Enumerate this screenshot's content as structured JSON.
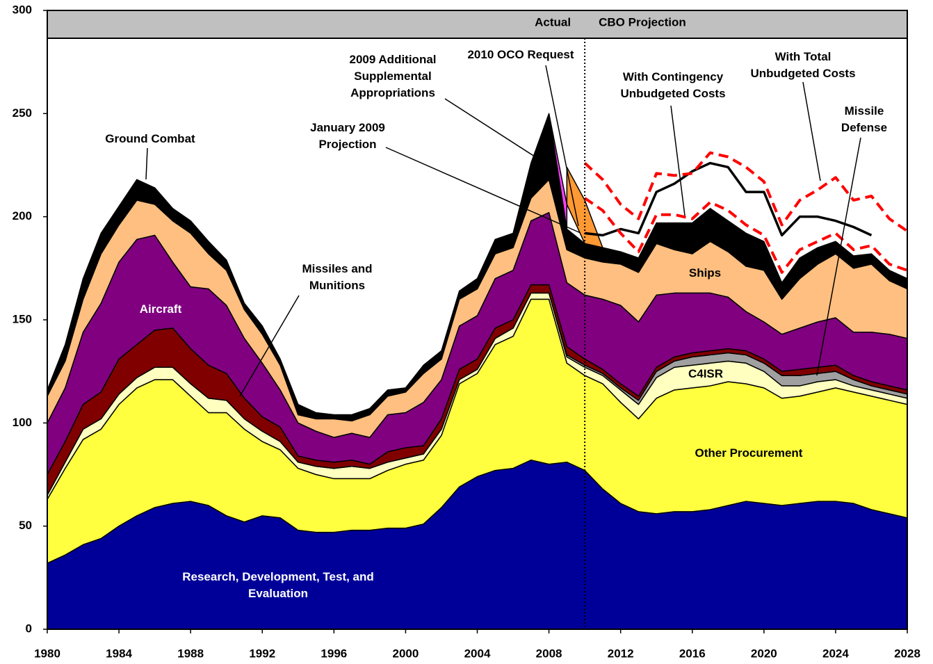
{
  "chart_data": {
    "type": "stacked_area",
    "actual_label": "Actual",
    "projection_label": "CBO Projection",
    "projection_start": 2010,
    "xlim": [
      1980,
      2028
    ],
    "xticks": [
      1980,
      1984,
      1988,
      1992,
      1996,
      2000,
      2004,
      2008,
      2012,
      2016,
      2020,
      2024,
      2028
    ],
    "ylim": [
      0,
      300
    ],
    "yticks": [
      0,
      50,
      100,
      150,
      200,
      250,
      300
    ],
    "grid": false,
    "x": [
      1980,
      1981,
      1982,
      1983,
      1984,
      1985,
      1986,
      1987,
      1988,
      1989,
      1990,
      1991,
      1992,
      1993,
      1994,
      1995,
      1996,
      1997,
      1998,
      1999,
      2000,
      2001,
      2002,
      2003,
      2004,
      2005,
      2006,
      2007,
      2008,
      2009,
      2010,
      2011,
      2012,
      2013,
      2014,
      2015,
      2016,
      2017,
      2018,
      2019,
      2020,
      2021,
      2022,
      2023,
      2024,
      2025,
      2026,
      2027,
      2028
    ],
    "series": [
      {
        "name": "Research, Development, Test, and\nEvaluation",
        "color": "#000099",
        "values": [
          32,
          36,
          41,
          44,
          50,
          55,
          59,
          61,
          62,
          60,
          55,
          52,
          55,
          54,
          48,
          47,
          47,
          48,
          48,
          49,
          49,
          51,
          59,
          69,
          74,
          77,
          78,
          82,
          80,
          81,
          77,
          68,
          61,
          57,
          56,
          57,
          57,
          58,
          60,
          62,
          61,
          60,
          61,
          62,
          62,
          61,
          58,
          56,
          54
        ]
      },
      {
        "name": "Other Procurement",
        "color": "#ffff40",
        "values": [
          31,
          42,
          51,
          53,
          59,
          62,
          62,
          60,
          51,
          45,
          50,
          45,
          36,
          33,
          30,
          28,
          26,
          25,
          25,
          28,
          31,
          31,
          35,
          50,
          50,
          61,
          64,
          78,
          80,
          48,
          46,
          51,
          49,
          45,
          56,
          59,
          60,
          60,
          60,
          57,
          56,
          52,
          52,
          53,
          55,
          54,
          55,
          55,
          55
        ]
      },
      {
        "name": "C4ISR",
        "color": "#ffffc0",
        "values": [
          2,
          3,
          5,
          5,
          5,
          5,
          6,
          6,
          6,
          7,
          6,
          5,
          5,
          4,
          3,
          4,
          5,
          6,
          5,
          4,
          3,
          3,
          3,
          2,
          2,
          3,
          4,
          3,
          3,
          3,
          4,
          4,
          6,
          7,
          10,
          11,
          11,
          11,
          10,
          10,
          8,
          6,
          5,
          5,
          4,
          3,
          3,
          3,
          3
        ]
      },
      {
        "name": "Missile\nDefense",
        "color": "#a0a0a0",
        "values": [
          0,
          0,
          0,
          0,
          0,
          0,
          0,
          0,
          0,
          0,
          0,
          0,
          0,
          0,
          0,
          0,
          0,
          0,
          0,
          0,
          0,
          0,
          0,
          0,
          0,
          0,
          0,
          0,
          0,
          1,
          1,
          1,
          1,
          2,
          3,
          3,
          4,
          4,
          4,
          4,
          4,
          5,
          5,
          4,
          4,
          3,
          2,
          2,
          2
        ]
      },
      {
        "name": "Missiles and\nMunitions",
        "color": "#800000",
        "values": [
          10,
          10,
          12,
          13,
          17,
          16,
          18,
          19,
          17,
          16,
          13,
          10,
          7,
          7,
          3,
          3,
          3,
          3,
          2,
          5,
          5,
          4,
          5,
          5,
          5,
          5,
          4,
          4,
          4,
          4,
          3,
          2,
          2,
          2,
          2,
          2,
          2,
          2,
          2,
          2,
          2,
          2,
          3,
          3,
          3,
          2,
          2,
          2,
          2
        ]
      },
      {
        "name": "Aircraft",
        "color": "#800080",
        "values": [
          25,
          26,
          35,
          43,
          47,
          51,
          46,
          32,
          30,
          37,
          33,
          29,
          26,
          18,
          16,
          14,
          12,
          13,
          13,
          18,
          17,
          21,
          19,
          21,
          21,
          24,
          24,
          31,
          35,
          31,
          31,
          34,
          38,
          36,
          35,
          31,
          29,
          28,
          25,
          19,
          18,
          18,
          20,
          22,
          23,
          21,
          24,
          25,
          25
        ]
      },
      {
        "name": "Ships",
        "color": "#ffbf80",
        "values": [
          13,
          13,
          16,
          24,
          18,
          19,
          15,
          20,
          26,
          17,
          17,
          14,
          14,
          12,
          4,
          6,
          9,
          6,
          11,
          9,
          10,
          14,
          10,
          13,
          13,
          12,
          11,
          11,
          16,
          16,
          18,
          18,
          20,
          24,
          25,
          21,
          19,
          25,
          22,
          22,
          25,
          17,
          24,
          28,
          31,
          31,
          33,
          26,
          24
        ]
      },
      {
        "name": "Ground Combat",
        "color": "#000000",
        "values": [
          3,
          8,
          10,
          10,
          9,
          10,
          8,
          6,
          6,
          6,
          5,
          3,
          4,
          3,
          5,
          3,
          2,
          3,
          3,
          3,
          2,
          4,
          4,
          4,
          5,
          7,
          7,
          17,
          32,
          10,
          7,
          7,
          6,
          7,
          10,
          13,
          15,
          16,
          15,
          16,
          14,
          8,
          10,
          8,
          6,
          6,
          5,
          5,
          5
        ]
      }
    ],
    "overlays": [
      {
        "name": "2009 Additional\nSupplemental\nAppropriations",
        "type": "stack",
        "color": "#ff40ff",
        "x": [
          2008,
          2009
        ],
        "values": [
          0,
          12
        ]
      },
      {
        "name": "2010 OCO Request",
        "type": "stack",
        "color": "#ff9933",
        "x": [
          2009,
          2010,
          2011
        ],
        "values": [
          18,
          21,
          0
        ]
      },
      {
        "name": "January 2009\nProjection",
        "type": "line",
        "color": "#000000",
        "dashed": false,
        "x": [
          2010,
          2011,
          2012,
          2013,
          2014,
          2015,
          2016,
          2017,
          2018,
          2019,
          2020,
          2021,
          2022,
          2023,
          2024,
          2025,
          2026
        ],
        "values": [
          192,
          191,
          194,
          192,
          212,
          216,
          222,
          226,
          224,
          212,
          212,
          191,
          200,
          200,
          198,
          195,
          191
        ]
      },
      {
        "name": "With Contingency\nUnbudgeted Costs",
        "type": "line",
        "color": "#ff0000",
        "dashed": true,
        "x": [
          2010,
          2011,
          2012,
          2013,
          2014,
          2015,
          2016,
          2017,
          2018,
          2019,
          2020,
          2021,
          2022,
          2023,
          2024,
          2025,
          2026,
          2027,
          2028
        ],
        "values": [
          209,
          203,
          192,
          183,
          201,
          201,
          199,
          207,
          203,
          196,
          191,
          173,
          184,
          188,
          192,
          184,
          186,
          177,
          174
        ]
      },
      {
        "name": "With Total\nUnbudgeted Costs",
        "type": "line",
        "color": "#ff0000",
        "dashed": true,
        "x": [
          2010,
          2011,
          2012,
          2013,
          2014,
          2015,
          2016,
          2017,
          2018,
          2019,
          2020,
          2021,
          2022,
          2023,
          2024,
          2025,
          2026,
          2027,
          2028
        ],
        "values": [
          226,
          218,
          206,
          199,
          221,
          220,
          221,
          231,
          229,
          224,
          217,
          196,
          208,
          213,
          219,
          208,
          210,
          199,
          193
        ]
      }
    ]
  }
}
